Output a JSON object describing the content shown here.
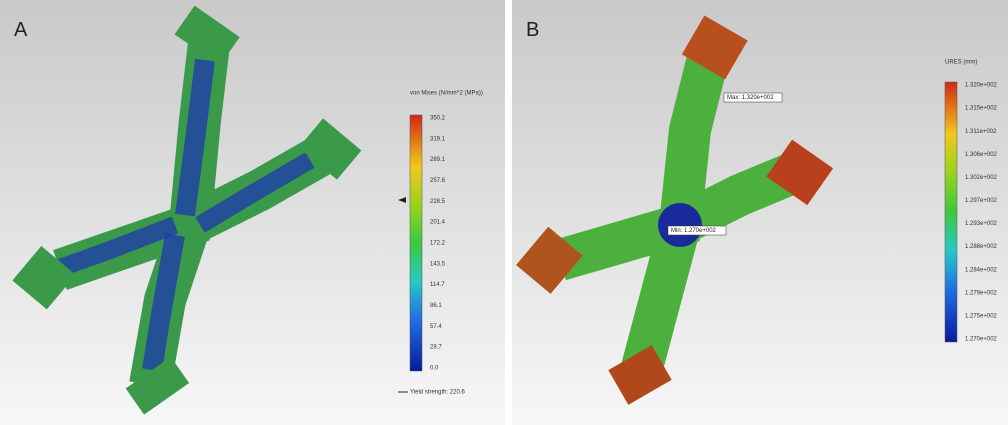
{
  "panels": [
    {
      "label": "A",
      "legend": {
        "title": "von Mises (N/mm^2 (MPa))",
        "ticks": [
          "350.2",
          "319.1",
          "289.1",
          "257.6",
          "228.5",
          "201.4",
          "172.2",
          "143.5",
          "114.7",
          "86.1",
          "57.4",
          "28.7",
          "0.0"
        ],
        "note": "Yield strength: 220.6"
      }
    },
    {
      "label": "B",
      "legend": {
        "title": "URES (mm)",
        "ticks": [
          "1.320e+002",
          "1.315e+002",
          "1.311e+002",
          "1.306e+002",
          "1.302e+002",
          "1.297e+002",
          "1.293e+002",
          "1.288e+002",
          "1.284e+002",
          "1.279e+002",
          "1.275e+002",
          "1.270e+002"
        ]
      },
      "annotations": [
        "Max: 1.320e+002",
        "Min: 1.270e+002"
      ]
    }
  ]
}
